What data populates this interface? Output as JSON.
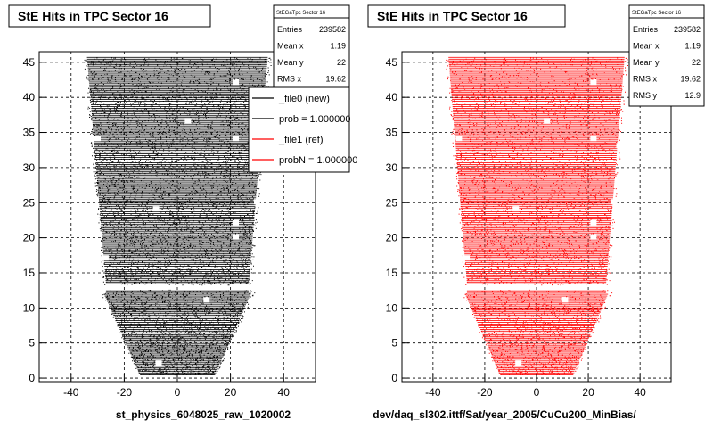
{
  "chart_data": [
    {
      "type": "heatmap",
      "title": "StE Hits in TPC Sector 16",
      "xlabel": "st_physics_6048025_raw_1020002",
      "ylabel": "",
      "xlim": [
        -52,
        52
      ],
      "ylim": [
        -0.5,
        46.5
      ],
      "x_ticks": [
        "-40",
        "-20",
        "0",
        "20",
        "40"
      ],
      "y_ticks": [
        "0",
        "5",
        "10",
        "15",
        "20",
        "25",
        "30",
        "35",
        "40",
        "45"
      ],
      "grid": true,
      "marker_color": "#000000",
      "stats": {
        "header": "StEGaTpc Sector 16",
        "rows": [
          {
            "label": "Entries",
            "value": "239582"
          },
          {
            "label": "Mean x",
            "value": "1.19"
          },
          {
            "label": "Mean y",
            "value": "22"
          },
          {
            "label": "RMS x",
            "value": "19.62"
          }
        ]
      },
      "legend": {
        "placement": "top-right",
        "entries": [
          {
            "label": "_file0 (new)",
            "color": "#000000"
          },
          {
            "label": "prob = 1.000000",
            "color": "#000000"
          },
          {
            "label": "_file1 (ref)",
            "color": "#ff0000"
          },
          {
            "label": "probN = 1.000000",
            "color": "#ff0000"
          }
        ]
      }
    },
    {
      "type": "heatmap",
      "title": "StE Hits in TPC Sector 16",
      "xlabel": "dev/daq_sl302.ittf/Sat/year_2005/CuCu200_MinBias/",
      "ylabel": "",
      "xlim": [
        -52,
        52
      ],
      "ylim": [
        -0.5,
        46.5
      ],
      "x_ticks": [
        "-40",
        "-20",
        "0",
        "20",
        "40"
      ],
      "y_ticks": [
        "0",
        "5",
        "10",
        "15",
        "20",
        "25",
        "30",
        "35",
        "40",
        "45"
      ],
      "grid": true,
      "marker_color": "#ff0000",
      "stats": {
        "header": "StEGaTpc Sector 16",
        "rows": [
          {
            "label": "Entries",
            "value": "239582"
          },
          {
            "label": "Mean x",
            "value": "1.19"
          },
          {
            "label": "Mean y",
            "value": "22"
          },
          {
            "label": "RMS x",
            "value": "19.62"
          },
          {
            "label": "RMS y",
            "value": "12.9"
          }
        ]
      }
    }
  ]
}
